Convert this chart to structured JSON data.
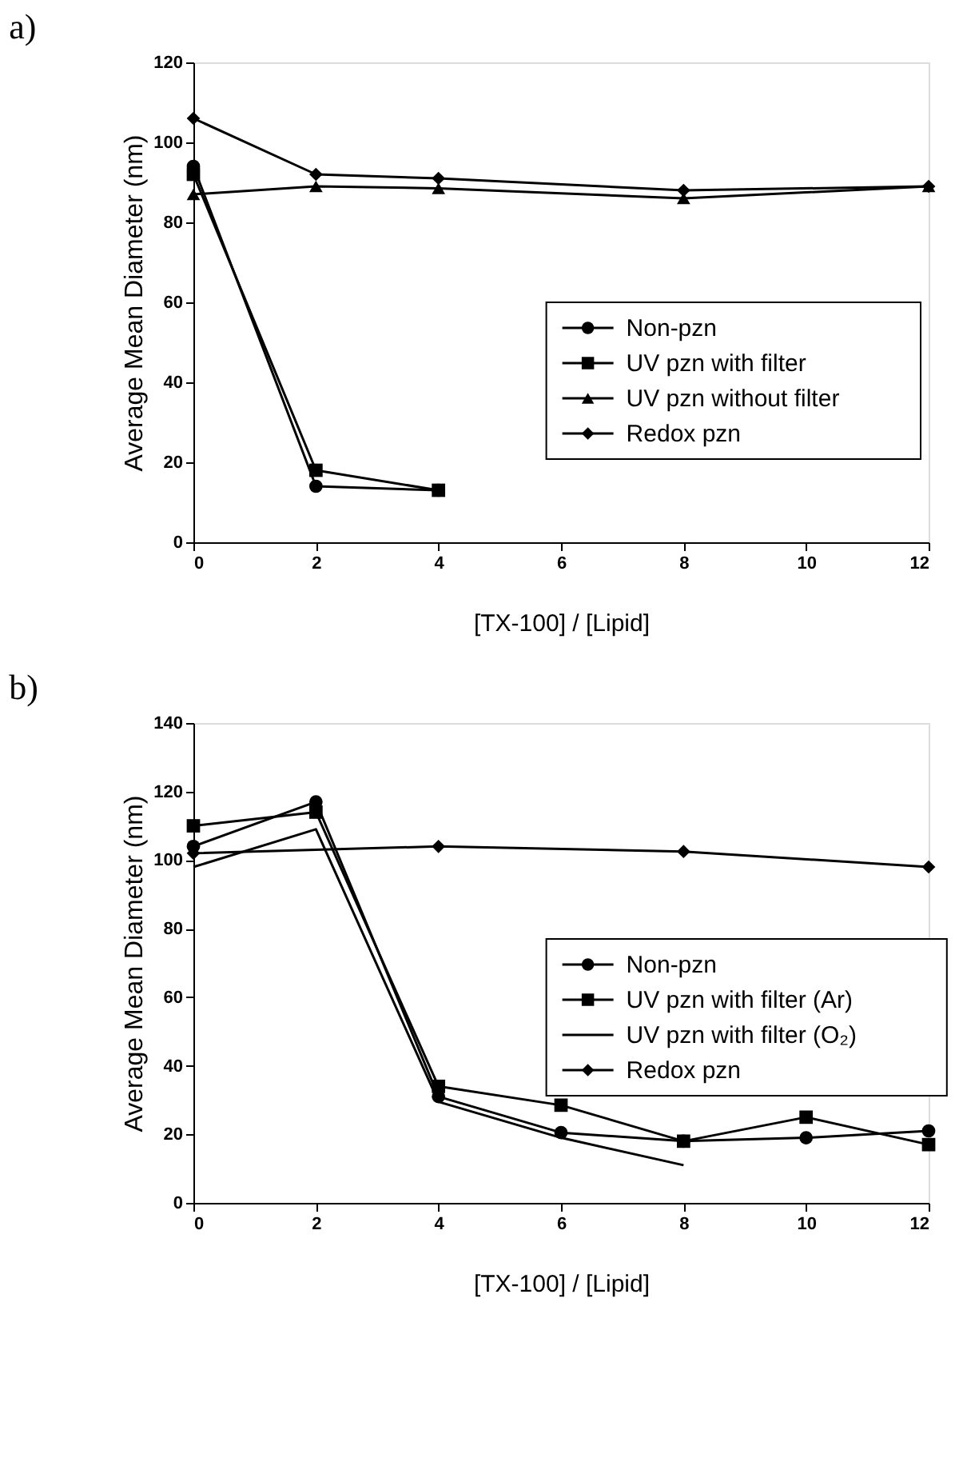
{
  "chart_data": [
    {
      "type": "line",
      "title": "a)",
      "xlabel": "[TX-100] / [Lipid]",
      "ylabel": "Average Mean Diameter (nm)",
      "xlim": [
        0,
        12
      ],
      "xticks": [
        0,
        2,
        4,
        6,
        8,
        10,
        12
      ],
      "ylim": [
        0,
        120
      ],
      "yticks": [
        0,
        20,
        40,
        60,
        80,
        100,
        120
      ],
      "grid": false,
      "legend": "bottom right",
      "line_style": "solid",
      "series": [
        {
          "name": "Non-pzn",
          "color": "#000000",
          "marker": "circle",
          "x": [
            0,
            2,
            4
          ],
          "values": [
            94,
            14,
            13
          ]
        },
        {
          "name": "UV pzn with filter",
          "color": "#000000",
          "marker": "square",
          "x": [
            0,
            2,
            4
          ],
          "values": [
            92,
            18,
            13
          ]
        },
        {
          "name": "UV pzn without filter",
          "color": "#000000",
          "marker": "triangle",
          "x": [
            0,
            2,
            4,
            8,
            12
          ],
          "values": [
            87,
            89,
            88.5,
            86,
            89
          ]
        },
        {
          "name": "Redox pzn",
          "color": "#000000",
          "marker": "diamond",
          "x": [
            0,
            2,
            4,
            8,
            12
          ],
          "values": [
            106,
            92,
            91,
            88,
            89
          ]
        }
      ]
    },
    {
      "type": "line",
      "title": "b)",
      "xlabel": "[TX-100] / [Lipid]",
      "ylabel": "Average Mean Diameter (nm)",
      "xlim": [
        0,
        12
      ],
      "xticks": [
        0,
        2,
        4,
        6,
        8,
        10,
        12
      ],
      "ylim": [
        0,
        140
      ],
      "yticks": [
        0,
        20,
        40,
        60,
        80,
        100,
        120,
        140
      ],
      "grid": false,
      "legend": "right",
      "line_style": "solid",
      "series": [
        {
          "name": "Non-pzn",
          "color": "#000000",
          "marker": "circle",
          "x": [
            0,
            2,
            4,
            6,
            8,
            10,
            12
          ],
          "values": [
            104,
            117,
            31,
            20.5,
            18,
            19,
            21
          ]
        },
        {
          "name": "UV pzn with filter (Ar)",
          "color": "#000000",
          "marker": "square",
          "x": [
            0,
            2,
            4,
            6,
            8,
            10,
            12
          ],
          "values": [
            110,
            114,
            34,
            28.5,
            18,
            25,
            17
          ]
        },
        {
          "name": "UV pzn with filter (O₂)",
          "color": "#000000",
          "marker": "none",
          "x": [
            0,
            2,
            4,
            6,
            8
          ],
          "values": [
            98,
            109,
            29.5,
            19,
            11
          ]
        },
        {
          "name": "Redox pzn",
          "color": "#000000",
          "marker": "diamond",
          "x": [
            0,
            4,
            8,
            12
          ],
          "values": [
            102,
            104,
            102.5,
            98
          ]
        }
      ]
    }
  ]
}
